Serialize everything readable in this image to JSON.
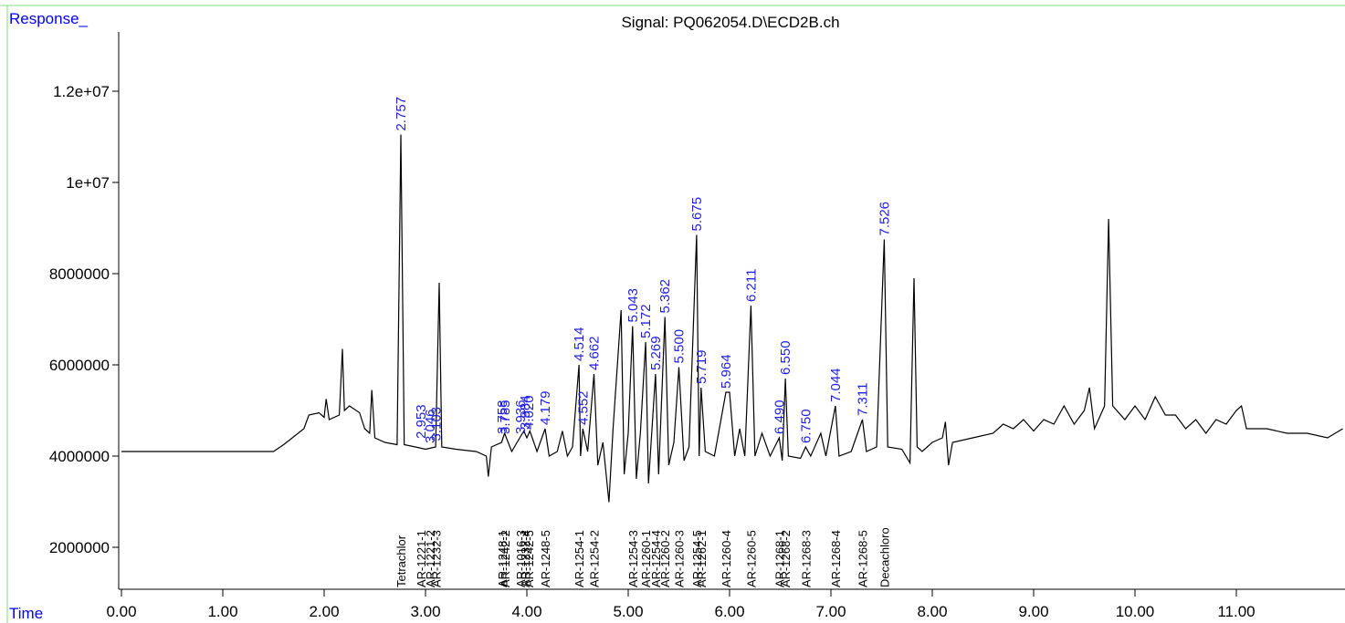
{
  "chart_data": {
    "type": "line",
    "title": "Signal: PQ062054.D\\ECD2B.ch",
    "y_label": "Response_",
    "x_label": "Time",
    "xlim": [
      -0.027,
      12.072
    ],
    "ylim": [
      1080000,
      13300000
    ],
    "xticks": [
      {
        "value": 0,
        "label": "0.00"
      },
      {
        "value": 1,
        "label": "1.00"
      },
      {
        "value": 2,
        "label": "2.00"
      },
      {
        "value": 3,
        "label": "3.00"
      },
      {
        "value": 4,
        "label": "4.00"
      },
      {
        "value": 5,
        "label": "5.00"
      },
      {
        "value": 6,
        "label": "6.00"
      },
      {
        "value": 7,
        "label": "7.00"
      },
      {
        "value": 8,
        "label": "8.00"
      },
      {
        "value": 9,
        "label": "9.00"
      },
      {
        "value": 10,
        "label": "10.00"
      },
      {
        "value": 11,
        "label": "11.00"
      }
    ],
    "yticks": [
      2000000,
      4000000,
      6000000,
      8000000,
      {
        "value": 10000000,
        "label": "1e+07"
      },
      {
        "value": 12000000,
        "label": "1.2e+07"
      }
    ],
    "color": "#000000",
    "x": [
      0,
      1.5,
      1.6,
      1.8,
      1.85,
      1.95,
      2.0,
      2.02,
      2.05,
      2.15,
      2.18,
      2.2,
      2.25,
      2.35,
      2.4,
      2.45,
      2.47,
      2.5,
      2.6,
      2.72,
      2.757,
      2.79,
      2.9,
      3.0,
      3.1,
      3.135,
      3.16,
      3.3,
      3.5,
      3.6,
      3.62,
      3.65,
      3.75,
      3.78,
      3.85,
      3.93,
      3.97,
      4.0,
      4.03,
      4.1,
      4.18,
      4.22,
      4.3,
      4.35,
      4.4,
      4.45,
      4.514,
      4.53,
      4.552,
      4.6,
      4.662,
      4.7,
      4.75,
      4.81,
      4.85,
      4.93,
      4.96,
      5.0,
      5.043,
      5.08,
      5.12,
      5.172,
      5.2,
      5.269,
      5.3,
      5.362,
      5.4,
      5.45,
      5.5,
      5.55,
      5.6,
      5.675,
      5.7,
      5.719,
      5.76,
      5.85,
      5.964,
      6.0,
      6.05,
      6.1,
      6.15,
      6.211,
      6.25,
      6.32,
      6.4,
      6.49,
      6.52,
      6.55,
      6.58,
      6.7,
      6.75,
      6.8,
      6.9,
      6.95,
      7.044,
      7.08,
      7.2,
      7.311,
      7.35,
      7.45,
      7.526,
      7.56,
      7.7,
      7.78,
      7.82,
      7.85,
      7.9,
      8.0,
      8.1,
      8.13,
      8.16,
      8.2,
      8.4,
      8.6,
      8.7,
      8.8,
      8.9,
      9.0,
      9.1,
      9.2,
      9.3,
      9.4,
      9.5,
      9.55,
      9.6,
      9.7,
      9.74,
      9.78,
      9.9,
      10.0,
      10.1,
      10.2,
      10.3,
      10.4,
      10.5,
      10.6,
      10.7,
      10.8,
      10.9,
      11.0,
      11.05,
      11.1,
      11.3,
      11.5,
      11.7,
      11.9,
      12.05
    ],
    "values": [
      4100000,
      4100000,
      4250000,
      4600000,
      4900000,
      4950000,
      4850000,
      5250000,
      4800000,
      4900000,
      6350000,
      5000000,
      5100000,
      4950000,
      4600000,
      4500000,
      5450000,
      4400000,
      4300000,
      4250000,
      11050000,
      4250000,
      4200000,
      4150000,
      4200000,
      7800000,
      4200000,
      4150000,
      4100000,
      4000000,
      3550000,
      4200000,
      4300000,
      4500000,
      4100000,
      4400000,
      4550000,
      4400000,
      4550000,
      4100000,
      4600000,
      4000000,
      4100000,
      4550000,
      4000000,
      4200000,
      6000000,
      4000000,
      4600000,
      4100000,
      5800000,
      3800000,
      4300000,
      2990000,
      4600000,
      7200000,
      3600000,
      4500000,
      6850000,
      3500000,
      4500000,
      6500000,
      3400000,
      5800000,
      3600000,
      7050000,
      3800000,
      4300000,
      5950000,
      3900000,
      4200000,
      8850000,
      4000000,
      5500000,
      4100000,
      4000000,
      5400000,
      5400000,
      4000000,
      4600000,
      4000000,
      7300000,
      4000000,
      4500000,
      4000000,
      4400000,
      3900000,
      5700000,
      4000000,
      3950000,
      4200000,
      4000000,
      4500000,
      4000000,
      5100000,
      4000000,
      4100000,
      4800000,
      4100000,
      4200000,
      8750000,
      4200000,
      4150000,
      3850000,
      7900000,
      4200000,
      4100000,
      4300000,
      4400000,
      4750000,
      3800000,
      4300000,
      4400000,
      4500000,
      4700000,
      4600000,
      4800000,
      4550000,
      4800000,
      4700000,
      5100000,
      4700000,
      5000000,
      5500000,
      4600000,
      5100000,
      9200000,
      5100000,
      4800000,
      5100000,
      4800000,
      5300000,
      4900000,
      4900000,
      4600000,
      4800000,
      4500000,
      4800000,
      4700000,
      5000000,
      5100000,
      4600000,
      4600000,
      4500000,
      4500000,
      4400000,
      4600000
    ],
    "peaks": {
      "color": "#1f1fdd",
      "x": [
        2.757,
        2.953,
        3.046,
        3.103,
        3.758,
        3.785,
        3.936,
        3.984,
        4.02,
        4.179,
        4.514,
        4.552,
        4.662,
        5.043,
        5.172,
        5.269,
        5.362,
        5.5,
        5.675,
        5.719,
        5.964,
        6.211,
        6.49,
        6.55,
        6.75,
        7.044,
        7.311,
        7.526
      ],
      "heights": [
        11050000,
        4300000,
        4200000,
        4250000,
        4400000,
        4400000,
        4400000,
        4500000,
        4500000,
        4600000,
        6000000,
        4600000,
        5800000,
        6850000,
        6500000,
        5800000,
        7050000,
        5950000,
        8850000,
        5500000,
        5400000,
        7300000,
        4400000,
        5700000,
        4200000,
        5100000,
        4800000,
        8750000
      ],
      "labels": [
        "2.757",
        "2.953",
        "3.046",
        "3.103",
        "3.758",
        "3.785",
        "3.936",
        "3.984",
        "4.020",
        "4.179",
        "4.514",
        "4.552",
        "4.662",
        "5.043",
        "5.172",
        "5.269",
        "5.362",
        "5.500",
        "5.675",
        "5.719",
        "5.964",
        "6.211",
        "6.490",
        "6.550",
        "6.750",
        "7.044",
        "7.311",
        "7.526"
      ]
    },
    "compounds": {
      "x": [
        2.757,
        2.953,
        3.046,
        3.103,
        3.758,
        3.785,
        3.936,
        3.984,
        4.02,
        4.179,
        4.514,
        4.662,
        5.043,
        5.172,
        5.269,
        5.362,
        5.5,
        5.675,
        5.719,
        5.964,
        6.211,
        6.49,
        6.55,
        6.75,
        7.044,
        7.311,
        7.526
      ],
      "labels": [
        "Tetrachlor",
        "AR-1221-1",
        "AR-1221-2",
        "AR-1232-3",
        "AR-1248-1",
        "AR-1242-2",
        "AR-1016-3",
        "AR-1232-4",
        "AR-1242-5",
        "AR-1248-5",
        "AR-1254-1",
        "AR-1254-2",
        "AR-1254-3",
        "AR-1260-1",
        "AR-1254-4",
        "AR-1260-2",
        "AR-1260-3",
        "AR-1254-5",
        "AR-1262-1",
        "AR-1260-4",
        "AR-1260-5",
        "AR-1268-1",
        "AR-1268-2",
        "AR-1268-3",
        "AR-1268-4",
        "AR-1268-5",
        "Decachloro"
      ]
    }
  }
}
